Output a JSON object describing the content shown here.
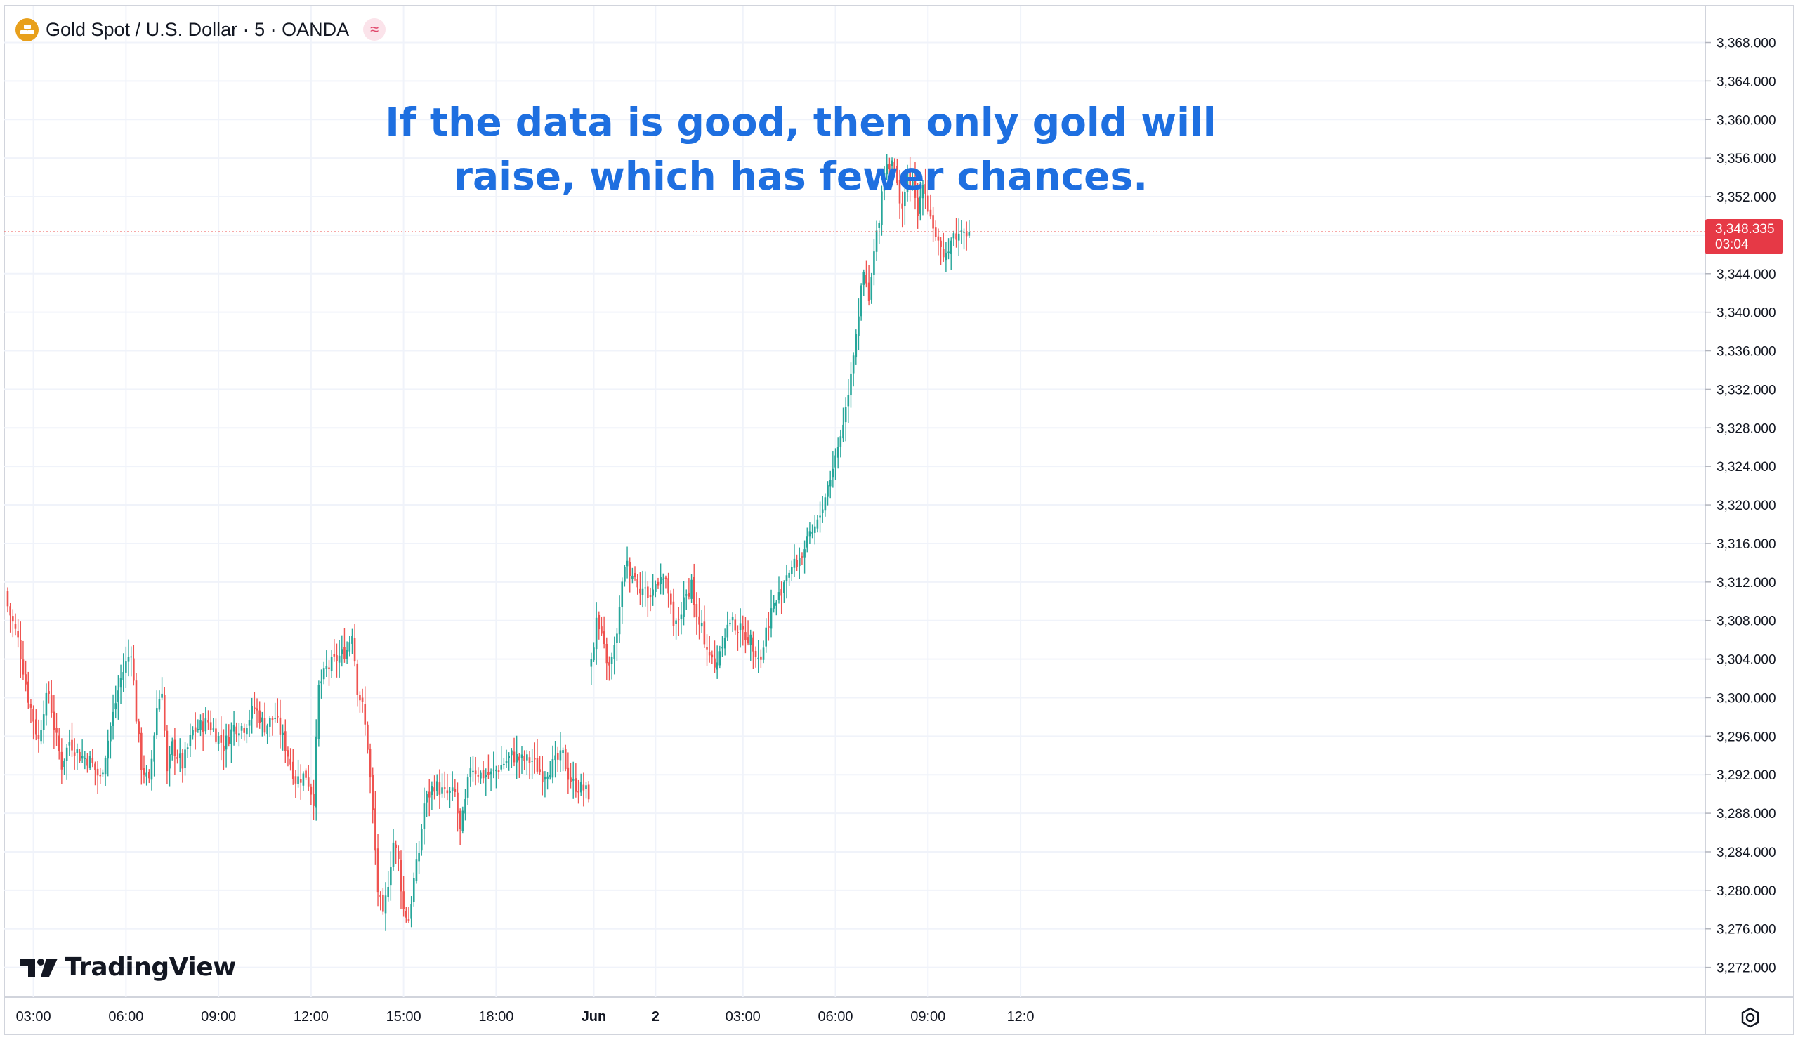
{
  "header": {
    "symbol_title": "Gold Spot / U.S. Dollar · 5 · OANDA",
    "icon": "gold-bars-icon",
    "indicator_badge_icon": "wave-icon",
    "indicator_badge_text": "≈"
  },
  "annotation": {
    "line1": "If the data is good, then only gold will",
    "line2": "raise, which has fewer chances."
  },
  "branding": {
    "logo_text": "TradingView",
    "logo_icon": "tradingview-logo-icon"
  },
  "price_label": {
    "price": "3,348.335",
    "countdown": "03:04"
  },
  "colors": {
    "up": "#26a69a",
    "down": "#ef5350",
    "annotation": "#1e6fe0",
    "price_line": "#ef5350",
    "grid": "#f0f3fa"
  },
  "chart_data": {
    "type": "candlestick",
    "grid": true,
    "legend": "none",
    "ylim": [
      3270,
      3370
    ],
    "y_ticks": [
      "3,368.000",
      "3,364.000",
      "3,360.000",
      "3,356.000",
      "3,352.000",
      "3,348.000",
      "3,344.000",
      "3,340.000",
      "3,336.000",
      "3,332.000",
      "3,328.000",
      "3,324.000",
      "3,320.000",
      "3,316.000",
      "3,312.000",
      "3,308.000",
      "3,304.000",
      "3,300.000",
      "3,296.000",
      "3,292.000",
      "3,288.000",
      "3,284.000",
      "3,280.000",
      "3,276.000",
      "3,272.000"
    ],
    "y_tick_values": [
      3368,
      3364,
      3360,
      3356,
      3352,
      3348,
      3344,
      3340,
      3336,
      3332,
      3328,
      3324,
      3320,
      3316,
      3312,
      3308,
      3304,
      3300,
      3296,
      3292,
      3288,
      3284,
      3280,
      3276,
      3272
    ],
    "x_ticks": [
      "03:00",
      "06:00",
      "09:00",
      "12:00",
      "15:00",
      "18:00",
      "Jun",
      "2",
      "03:00",
      "06:00",
      "09:00",
      "12:0"
    ],
    "x_tick_bar_index": [
      10,
      46,
      82,
      118,
      154,
      190,
      228,
      252,
      286,
      322,
      358,
      394
    ],
    "current_price": 3348.335,
    "session_gap_after_bar": 226,
    "close_path": [
      [
        0,
        3309.5
      ],
      [
        4,
        3306
      ],
      [
        8,
        3300
      ],
      [
        12,
        3295.5
      ],
      [
        14,
        3299
      ],
      [
        16,
        3300.5
      ],
      [
        18,
        3297
      ],
      [
        21,
        3293
      ],
      [
        24,
        3295.5
      ],
      [
        28,
        3294
      ],
      [
        32,
        3293.5
      ],
      [
        36,
        3291.5
      ],
      [
        40,
        3297
      ],
      [
        44,
        3302
      ],
      [
        48,
        3305
      ],
      [
        50,
        3298
      ],
      [
        52,
        3293
      ],
      [
        55,
        3291
      ],
      [
        58,
        3299
      ],
      [
        60,
        3301
      ],
      [
        62,
        3292
      ],
      [
        64,
        3295
      ],
      [
        68,
        3293
      ],
      [
        72,
        3296.5
      ],
      [
        78,
        3297.5
      ],
      [
        84,
        3295
      ],
      [
        88,
        3297
      ],
      [
        92,
        3297
      ],
      [
        96,
        3299
      ],
      [
        100,
        3297
      ],
      [
        104,
        3298
      ],
      [
        108,
        3295
      ],
      [
        112,
        3291.5
      ],
      [
        116,
        3292
      ],
      [
        119,
        3289.5
      ],
      [
        121,
        3301
      ],
      [
        124,
        3303
      ],
      [
        128,
        3304
      ],
      [
        132,
        3305
      ],
      [
        134,
        3307
      ],
      [
        136,
        3301
      ],
      [
        138,
        3299
      ],
      [
        140,
        3295
      ],
      [
        142,
        3288
      ],
      [
        144,
        3280
      ],
      [
        146,
        3277
      ],
      [
        148,
        3281
      ],
      [
        150,
        3285
      ],
      [
        152,
        3283
      ],
      [
        154,
        3278
      ],
      [
        156,
        3277
      ],
      [
        158,
        3281
      ],
      [
        160,
        3284
      ],
      [
        162,
        3289
      ],
      [
        166,
        3291
      ],
      [
        170,
        3290
      ],
      [
        174,
        3290
      ],
      [
        176,
        3286
      ],
      [
        178,
        3289
      ],
      [
        180,
        3293
      ],
      [
        184,
        3292
      ],
      [
        188,
        3292
      ],
      [
        192,
        3293
      ],
      [
        196,
        3294
      ],
      [
        200,
        3293.5
      ],
      [
        204,
        3293.5
      ],
      [
        208,
        3292
      ],
      [
        212,
        3293
      ],
      [
        216,
        3294
      ],
      [
        218,
        3292
      ],
      [
        220,
        3291
      ],
      [
        224,
        3290.5
      ],
      [
        226,
        3290
      ],
      [
        227,
        3303.5
      ],
      [
        229,
        3308
      ],
      [
        232,
        3305
      ],
      [
        234,
        3303
      ],
      [
        236,
        3305
      ],
      [
        238,
        3309
      ],
      [
        240,
        3314
      ],
      [
        243,
        3313
      ],
      [
        246,
        3311.5
      ],
      [
        250,
        3310.5
      ],
      [
        254,
        3313
      ],
      [
        257,
        3311
      ],
      [
        259,
        3307
      ],
      [
        262,
        3309
      ],
      [
        266,
        3312
      ],
      [
        268,
        3308
      ],
      [
        270,
        3307
      ],
      [
        273,
        3304.5
      ],
      [
        275,
        3303
      ],
      [
        278,
        3306
      ],
      [
        281,
        3308
      ],
      [
        285,
        3307
      ],
      [
        289,
        3306
      ],
      [
        293,
        3304
      ],
      [
        295,
        3307
      ],
      [
        297,
        3309
      ],
      [
        300,
        3310.5
      ],
      [
        303,
        3313
      ],
      [
        307,
        3314
      ],
      [
        311,
        3316
      ],
      [
        315,
        3318
      ],
      [
        319,
        3322
      ],
      [
        323,
        3326
      ],
      [
        326,
        3330
      ],
      [
        329,
        3336
      ],
      [
        331,
        3340
      ],
      [
        333,
        3344
      ],
      [
        335,
        3341
      ],
      [
        337,
        3346
      ],
      [
        339,
        3350
      ],
      [
        341,
        3355
      ],
      [
        344,
        3356
      ],
      [
        346,
        3353
      ],
      [
        348,
        3351
      ],
      [
        350,
        3354
      ],
      [
        352,
        3353
      ],
      [
        354,
        3350
      ],
      [
        356,
        3354
      ],
      [
        358,
        3351
      ],
      [
        360,
        3349
      ],
      [
        362,
        3347
      ],
      [
        364,
        3345
      ],
      [
        366,
        3347
      ],
      [
        368,
        3348
      ],
      [
        370,
        3348
      ],
      [
        372,
        3349
      ],
      [
        374,
        3348.3
      ]
    ]
  }
}
